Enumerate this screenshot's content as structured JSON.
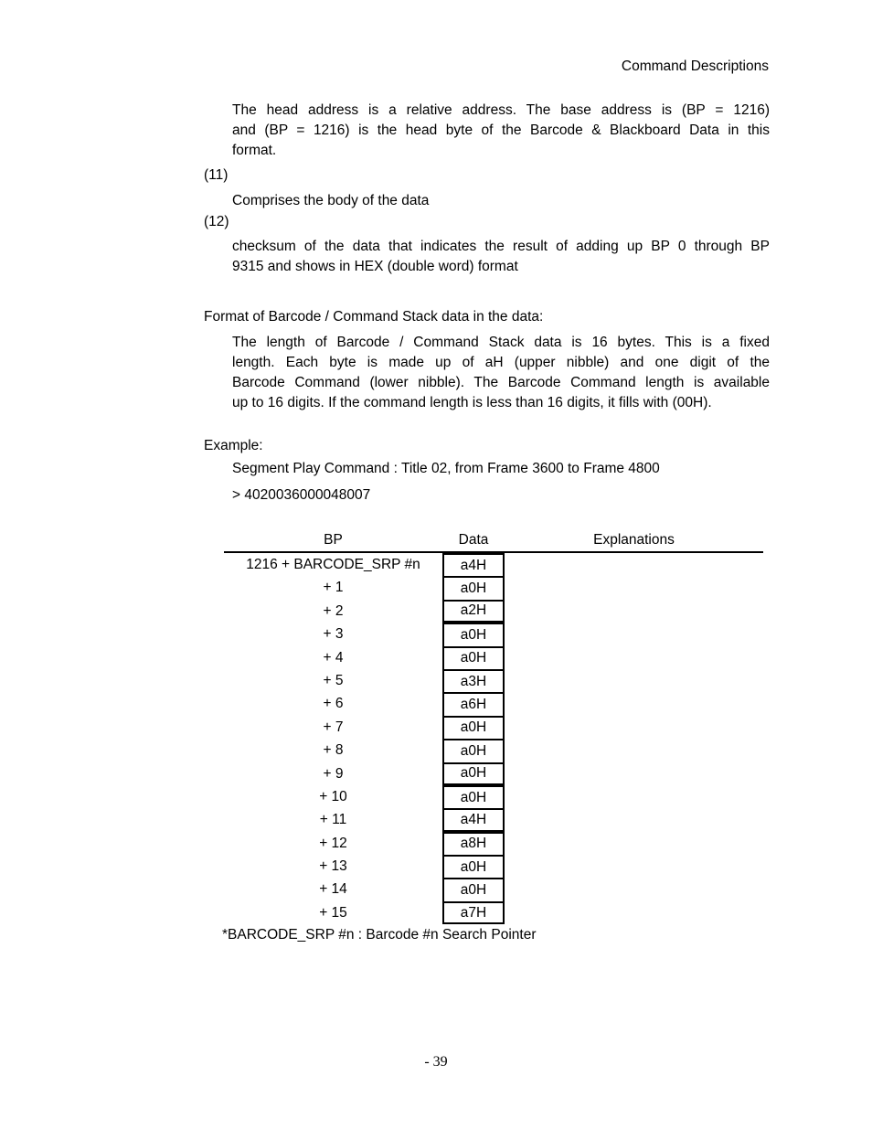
{
  "page": {
    "header": "Command Descriptions",
    "page_number": "- 39"
  },
  "content": {
    "para1_lines": [
      "The head address is a relative address.  The base address is (BP = 1216)",
      "and (BP = 1216) is the head byte of the Barcode & Blackboard Data in this",
      "format."
    ],
    "item11_label": "(11)",
    "item11_text": "Comprises the body of the data",
    "item12_label": "(12)",
    "item12_lines": [
      "checksum of the data that indicates the result of adding up BP 0 through BP",
      "9315 and shows in HEX (double word) format"
    ],
    "format_heading": "Format of Barcode / Command Stack data in the data:",
    "format_lines": [
      "The length of Barcode / Command Stack data is 16 bytes. This is a fixed",
      "length. Each byte is made up of aH (upper nibble) and one digit of the",
      "Barcode Command (lower nibble). The Barcode Command length is available",
      "up to 16 digits. If the command length is less than 16 digits, it fills with (00H)."
    ],
    "example_heading": "Example:",
    "example_line1": "Segment Play Command : Title 02, from Frame 3600 to Frame 4800",
    "example_line2": "> 4020036000048007"
  },
  "table": {
    "headers": [
      "BP",
      "Data",
      "Explanations"
    ],
    "rows": [
      {
        "bp": "1216 + BARCODE_SRP #n",
        "data": "a4H",
        "group_end": false
      },
      {
        "bp": "+ 1",
        "data": "a0H",
        "group_end": false
      },
      {
        "bp": "+ 2",
        "data": "a2H",
        "group_end": true
      },
      {
        "bp": "+ 3",
        "data": "a0H",
        "group_end": false
      },
      {
        "bp": "+ 4",
        "data": "a0H",
        "group_end": false
      },
      {
        "bp": "+ 5",
        "data": "a3H",
        "group_end": false
      },
      {
        "bp": "+ 6",
        "data": "a6H",
        "group_end": false
      },
      {
        "bp": "+ 7",
        "data": "a0H",
        "group_end": false
      },
      {
        "bp": "+ 8",
        "data": "a0H",
        "group_end": false
      },
      {
        "bp": "+ 9",
        "data": "a0H",
        "group_end": true
      },
      {
        "bp": "+ 10",
        "data": "a0H",
        "group_end": false
      },
      {
        "bp": "+ 11",
        "data": "a4H",
        "group_end": true
      },
      {
        "bp": "+ 12",
        "data": "a8H",
        "group_end": false
      },
      {
        "bp": "+ 13",
        "data": "a0H",
        "group_end": false
      },
      {
        "bp": "+ 14",
        "data": "a0H",
        "group_end": false
      },
      {
        "bp": "+ 15",
        "data": "a7H",
        "group_end": false
      }
    ],
    "footnote": "*BARCODE_SRP #n : Barcode #n Search Pointer"
  }
}
